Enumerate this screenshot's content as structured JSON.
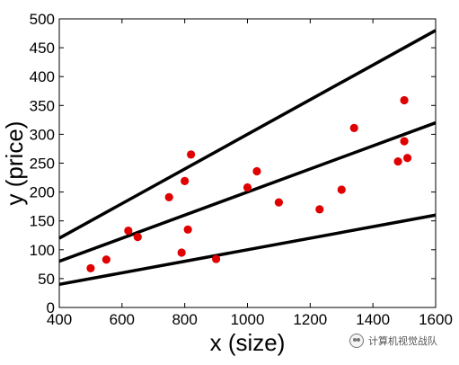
{
  "chart_data": {
    "type": "scatter",
    "xlabel": "x (size)",
    "ylabel": "y (price)",
    "xlim": [
      400,
      1600
    ],
    "ylim": [
      0,
      500
    ],
    "xticks": [
      400,
      600,
      800,
      1000,
      1200,
      1400,
      1600
    ],
    "yticks": [
      0,
      50,
      100,
      150,
      200,
      250,
      300,
      350,
      400,
      450,
      500
    ],
    "grid": false,
    "points": {
      "color": "#e00000",
      "x": [
        500,
        550,
        620,
        650,
        750,
        790,
        800,
        810,
        820,
        900,
        1000,
        1030,
        1100,
        1230,
        1300,
        1340,
        1480,
        1500,
        1500,
        1510
      ],
      "y": [
        68,
        83,
        133,
        122,
        191,
        95,
        219,
        135,
        265,
        84,
        208,
        236,
        182,
        170,
        204,
        311,
        253,
        288,
        359,
        259
      ]
    },
    "lines": [
      {
        "color": "#000000",
        "x": [
          400,
          1600
        ],
        "y": [
          120,
          480
        ]
      },
      {
        "color": "#000000",
        "x": [
          400,
          1600
        ],
        "y": [
          80,
          320
        ]
      },
      {
        "color": "#000000",
        "x": [
          400,
          1600
        ],
        "y": [
          40,
          160
        ]
      }
    ]
  },
  "watermark": {
    "text": "计算机视觉战队",
    "icon": "wechat-icon"
  }
}
